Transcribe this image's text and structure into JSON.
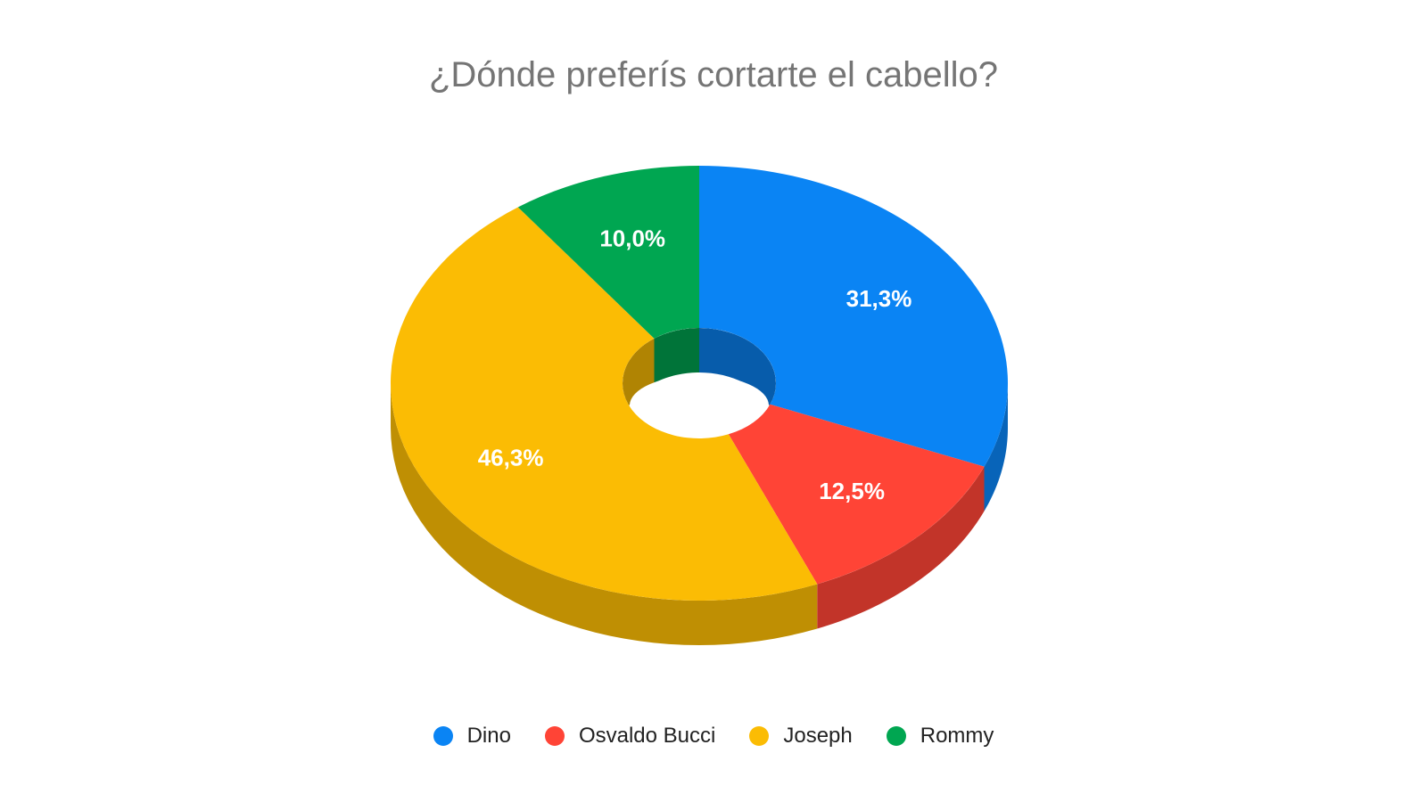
{
  "chart_data": {
    "type": "pie",
    "title": "¿Dónde preferís cortarte el cabello?",
    "categories": [
      "Dino",
      "Osvaldo Bucci",
      "Joseph",
      "Rommy"
    ],
    "values": [
      31.3,
      12.5,
      46.3,
      10.0
    ],
    "labels": [
      "31,3%",
      "12,5%",
      "46,3%",
      "10,0%"
    ],
    "colors": [
      "#0a84f4",
      "#ff4436",
      "#fbbc04",
      "#00a651"
    ],
    "style": "3d-donut",
    "legend": "bottom"
  }
}
